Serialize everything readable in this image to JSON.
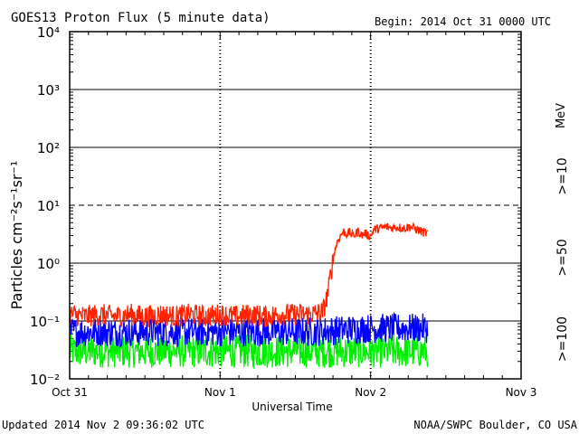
{
  "header": {
    "title": "GOES13 Proton Flux (5 minute data)",
    "begin": "Begin: 2014 Oct 31 0000 UTC"
  },
  "footer": {
    "updated": "Updated 2014 Nov  2 09:36:02 UTC",
    "source": "NOAA/SWPC Boulder, CO USA"
  },
  "chart_data": {
    "type": "line",
    "title": "GOES13 Proton Flux (5 minute data)",
    "xlabel": "Universal Time",
    "ylabel": "Particles cm⁻²s⁻¹sr⁻¹",
    "y_scale": "log",
    "ylim": [
      0.01,
      10000
    ],
    "y_ticks": [
      {
        "value": 0.01,
        "label": "10⁻²"
      },
      {
        "value": 0.1,
        "label": "10⁻¹"
      },
      {
        "value": 1,
        "label": "10⁰"
      },
      {
        "value": 10,
        "label": "10¹"
      },
      {
        "value": 100,
        "label": "10²"
      },
      {
        "value": 1000,
        "label": "10³"
      },
      {
        "value": 10000,
        "label": "10⁴"
      }
    ],
    "dashed_threshold": 10,
    "x_range_days": [
      0,
      3
    ],
    "x_ticks": [
      {
        "value": 0,
        "label": "Oct 31"
      },
      {
        "value": 1,
        "label": "Nov 1"
      },
      {
        "value": 2,
        "label": "Nov 2"
      },
      {
        "value": 3,
        "label": "Nov 3"
      }
    ],
    "units_label": "MeV",
    "series": [
      {
        "name": ">=10",
        "color": "#ff2200",
        "points": [
          [
            0,
            0.13
          ],
          [
            0.1,
            0.12
          ],
          [
            0.2,
            0.13
          ],
          [
            0.3,
            0.12
          ],
          [
            0.4,
            0.13
          ],
          [
            0.5,
            0.12
          ],
          [
            0.6,
            0.13
          ],
          [
            0.7,
            0.12
          ],
          [
            0.8,
            0.13
          ],
          [
            0.9,
            0.12
          ],
          [
            1.0,
            0.13
          ],
          [
            1.1,
            0.12
          ],
          [
            1.2,
            0.13
          ],
          [
            1.3,
            0.12
          ],
          [
            1.4,
            0.13
          ],
          [
            1.5,
            0.13
          ],
          [
            1.6,
            0.13
          ],
          [
            1.68,
            0.14
          ],
          [
            1.7,
            0.2
          ],
          [
            1.72,
            0.35
          ],
          [
            1.74,
            0.8
          ],
          [
            1.76,
            1.6
          ],
          [
            1.78,
            2.4
          ],
          [
            1.8,
            3.0
          ],
          [
            1.82,
            3.5
          ],
          [
            1.84,
            3.2
          ],
          [
            1.86,
            3.4
          ],
          [
            1.88,
            3.0
          ],
          [
            1.9,
            3.2
          ],
          [
            1.92,
            3.6
          ],
          [
            1.94,
            3.0
          ],
          [
            1.96,
            3.3
          ],
          [
            1.98,
            3.1
          ],
          [
            2.0,
            2.9
          ],
          [
            2.02,
            3.8
          ],
          [
            2.06,
            4.0
          ],
          [
            2.1,
            4.2
          ],
          [
            2.14,
            4.1
          ],
          [
            2.18,
            4.2
          ],
          [
            2.22,
            4.0
          ],
          [
            2.26,
            4.3
          ],
          [
            2.3,
            3.9
          ],
          [
            2.34,
            3.5
          ],
          [
            2.38,
            3.2
          ]
        ]
      },
      {
        "name": ">=50",
        "color": "#0000ff",
        "points": [
          [
            0,
            0.065
          ],
          [
            0.2,
            0.065
          ],
          [
            0.4,
            0.065
          ],
          [
            0.6,
            0.065
          ],
          [
            0.8,
            0.065
          ],
          [
            1.0,
            0.065
          ],
          [
            1.2,
            0.065
          ],
          [
            1.4,
            0.065
          ],
          [
            1.6,
            0.065
          ],
          [
            1.8,
            0.07
          ],
          [
            2.0,
            0.075
          ],
          [
            2.2,
            0.075
          ],
          [
            2.38,
            0.075
          ]
        ]
      },
      {
        "name": ">=100",
        "color": "#00ee00",
        "points": [
          [
            0,
            0.03
          ],
          [
            0.2,
            0.03
          ],
          [
            0.4,
            0.03
          ],
          [
            0.6,
            0.03
          ],
          [
            0.8,
            0.03
          ],
          [
            1.0,
            0.03
          ],
          [
            1.2,
            0.03
          ],
          [
            1.4,
            0.03
          ],
          [
            1.6,
            0.03
          ],
          [
            1.8,
            0.03
          ],
          [
            2.0,
            0.03
          ],
          [
            2.2,
            0.03
          ],
          [
            2.38,
            0.03
          ]
        ]
      }
    ]
  }
}
